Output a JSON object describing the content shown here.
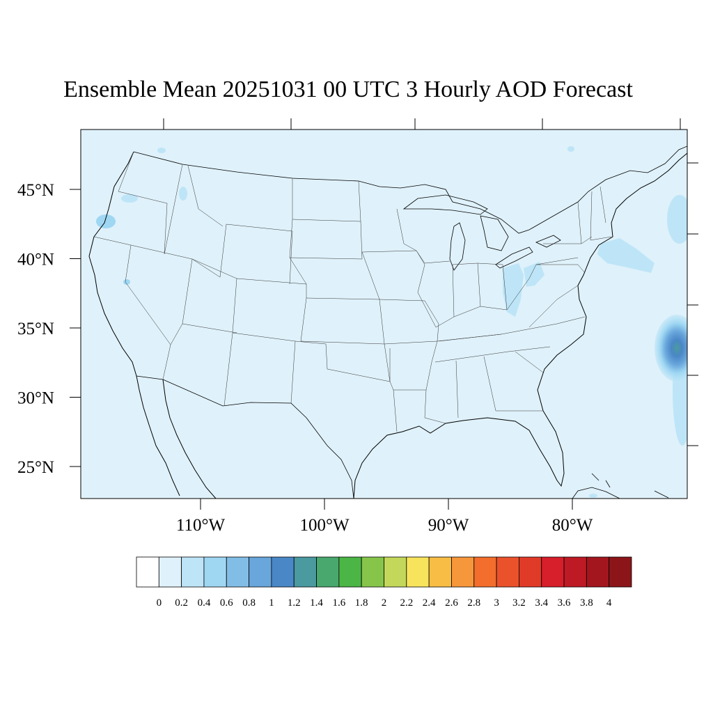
{
  "title": "Ensemble Mean 20251031 00 UTC 3 Hourly AOD Forecast",
  "map": {
    "projection": "conic (CONUS)",
    "background_color": "#dff1fa",
    "lon_ticks": [
      {
        "value": -110,
        "label": "110°W"
      },
      {
        "value": -100,
        "label": "100°W"
      },
      {
        "value": -90,
        "label": "90°W"
      },
      {
        "value": -80,
        "label": "80°W"
      }
    ],
    "lat_ticks": [
      {
        "value": 45,
        "label": "45°N"
      },
      {
        "value": 40,
        "label": "40°N"
      },
      {
        "value": 35,
        "label": "35°N"
      },
      {
        "value": 30,
        "label": "30°N"
      },
      {
        "value": 25,
        "label": "25°N"
      }
    ]
  },
  "colorbar": {
    "levels": [
      "0",
      "0.2",
      "0.4",
      "0.6",
      "0.8",
      "1",
      "1.2",
      "1.4",
      "1.6",
      "1.8",
      "2",
      "2.2",
      "2.4",
      "2.6",
      "2.8",
      "3",
      "3.2",
      "3.4",
      "3.6",
      "3.8",
      "4"
    ],
    "colors": [
      "#ffffff",
      "#dff1fa",
      "#bde5f7",
      "#9fd7f3",
      "#82bde6",
      "#68a6db",
      "#4a87c7",
      "#4a9aa0",
      "#49a86e",
      "#4bb545",
      "#86c54a",
      "#c3d85a",
      "#f8e45c",
      "#f7bd45",
      "#f7973c",
      "#f36d2d",
      "#ea522b",
      "#e03a28",
      "#d61f2a",
      "#bd1a25",
      "#a3161e",
      "#8c1519"
    ]
  },
  "chart_data": {
    "type": "heatmap",
    "title": "Ensemble Mean 20251031 00 UTC 3 Hourly AOD Forecast",
    "variable": "AOD",
    "value_range": [
      0,
      4
    ],
    "features": [
      {
        "region": "Atlantic off North Carolina",
        "max_value": 1.4
      },
      {
        "region": "Atlantic off New Jersey",
        "value": 0.4
      },
      {
        "region": "Ohio / West Virginia",
        "value": 0.4
      },
      {
        "region": "Oregon coast",
        "value": 0.4
      },
      {
        "region": "Most of CONUS",
        "value": 0.2
      }
    ]
  }
}
